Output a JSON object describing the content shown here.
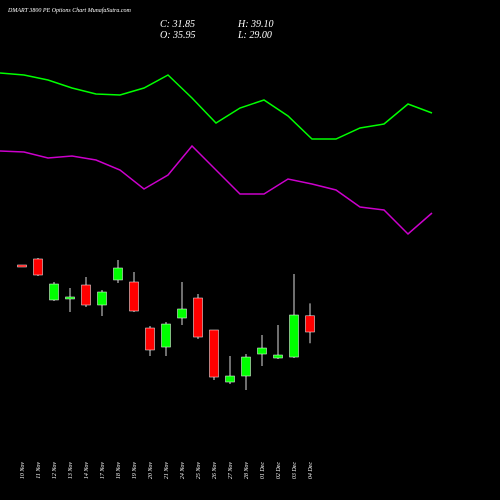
{
  "chart_data": {
    "type": "candlestick",
    "title": "DMART 3800  PE Options  Chart MunafaSutra.com",
    "ohlc_labels": [
      "C: 31.85",
      "H: 39.10",
      "O: 35.95",
      "L: 29.00"
    ],
    "categories": [
      "10 Nov",
      "11 Nov",
      "12 Nov",
      "13 Nov",
      "14 Nov",
      "17 Nov",
      "18 Nov",
      "19 Nov",
      "20 Nov",
      "21 Nov",
      "24 Nov",
      "25 Nov",
      "26 Nov",
      "27 Nov",
      "28 Nov",
      "01 Dec",
      "02 Dec",
      "03 Dec",
      "04 Dec"
    ],
    "open": [
      48.8,
      50.32,
      39.95,
      40.45,
      43.74,
      38.68,
      45.01,
      44.5,
      32.86,
      28.05,
      35.39,
      40.45,
      32.36,
      19.2,
      20.72,
      26.28,
      25.27,
      25.52,
      35.95
    ],
    "high": [
      48.8,
      50.57,
      44.5,
      42.98,
      45.77,
      42.48,
      50.07,
      47.03,
      33.37,
      34.38,
      44.5,
      41.46,
      32.36,
      25.78,
      26.28,
      31.09,
      33.62,
      46.52,
      39.1
    ],
    "low": [
      48.3,
      46.02,
      39.69,
      36.91,
      38.18,
      35.9,
      44.25,
      36.91,
      25.78,
      25.78,
      33.62,
      30.08,
      19.71,
      18.69,
      17.18,
      23.25,
      25.02,
      25.27,
      29.0
    ],
    "close": [
      48.3,
      46.27,
      43.99,
      40.71,
      38.68,
      41.97,
      48.04,
      37.16,
      27.3,
      33.87,
      37.67,
      30.58,
      20.46,
      20.72,
      25.52,
      27.8,
      26.03,
      36.15,
      31.85
    ],
    "up_color": "#00ff00",
    "down_color": "#ff0000",
    "series": [
      {
        "color": "#00ff00",
        "values": [
          177,
          175,
          170,
          162,
          156,
          155,
          162,
          175,
          152,
          127,
          142,
          150,
          134,
          111,
          111,
          122,
          126,
          146,
          137
        ]
      },
      {
        "color": "#cc00cc",
        "values": [
          99,
          98,
          92,
          94,
          90,
          80,
          61,
          75,
          104,
          80,
          56,
          56,
          71,
          66,
          60,
          43,
          40,
          16,
          37
        ]
      }
    ]
  }
}
